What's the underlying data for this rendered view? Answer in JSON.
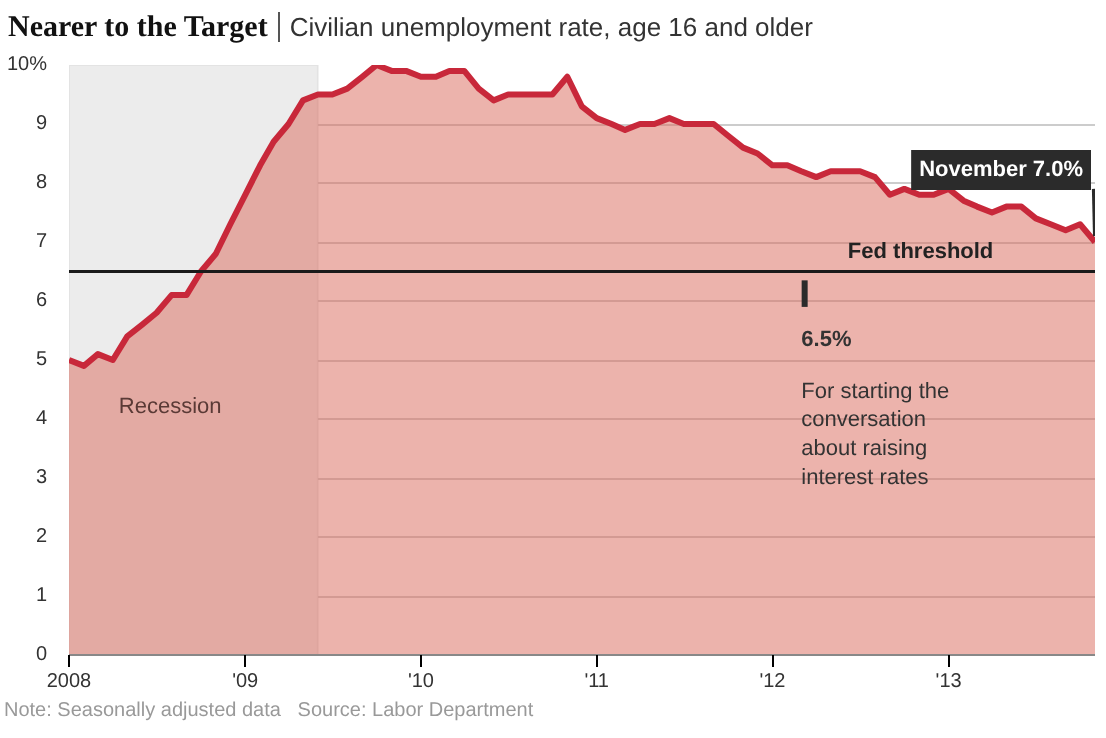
{
  "chart_data": {
    "type": "area",
    "title": "Nearer to the Target",
    "subtitle": "Civilian unemployment rate, age 16 and older",
    "x": [
      "2008-01",
      "2008-02",
      "2008-03",
      "2008-04",
      "2008-05",
      "2008-06",
      "2008-07",
      "2008-08",
      "2008-09",
      "2008-10",
      "2008-11",
      "2008-12",
      "2009-01",
      "2009-02",
      "2009-03",
      "2009-04",
      "2009-05",
      "2009-06",
      "2009-07",
      "2009-08",
      "2009-09",
      "2009-10",
      "2009-11",
      "2009-12",
      "2010-01",
      "2010-02",
      "2010-03",
      "2010-04",
      "2010-05",
      "2010-06",
      "2010-07",
      "2010-08",
      "2010-09",
      "2010-10",
      "2010-11",
      "2010-12",
      "2011-01",
      "2011-02",
      "2011-03",
      "2011-04",
      "2011-05",
      "2011-06",
      "2011-07",
      "2011-08",
      "2011-09",
      "2011-10",
      "2011-11",
      "2011-12",
      "2012-01",
      "2012-02",
      "2012-03",
      "2012-04",
      "2012-05",
      "2012-06",
      "2012-07",
      "2012-08",
      "2012-09",
      "2012-10",
      "2012-11",
      "2012-12",
      "2013-01",
      "2013-02",
      "2013-03",
      "2013-04",
      "2013-05",
      "2013-06",
      "2013-07",
      "2013-08",
      "2013-09",
      "2013-10",
      "2013-11"
    ],
    "series": [
      {
        "color": "#c8283a",
        "values": [
          5.0,
          4.9,
          5.1,
          5.0,
          5.4,
          5.6,
          5.8,
          6.1,
          6.1,
          6.5,
          6.8,
          7.3,
          7.8,
          8.3,
          8.7,
          9.0,
          9.4,
          9.5,
          9.5,
          9.6,
          9.8,
          10.0,
          9.9,
          9.9,
          9.8,
          9.8,
          9.9,
          9.9,
          9.6,
          9.4,
          9.5,
          9.5,
          9.5,
          9.5,
          9.8,
          9.3,
          9.1,
          9.0,
          8.9,
          9.0,
          9.0,
          9.1,
          9.0,
          9.0,
          9.0,
          8.8,
          8.6,
          8.5,
          8.3,
          8.3,
          8.2,
          8.1,
          8.2,
          8.2,
          8.2,
          8.1,
          7.8,
          7.9,
          7.8,
          7.8,
          7.9,
          7.7,
          7.6,
          7.5,
          7.6,
          7.6,
          7.4,
          7.3,
          7.2,
          7.3,
          7.0
        ]
      }
    ],
    "xlim": [
      "2008-01",
      "2013-11"
    ],
    "xticks": [
      {
        "value": "2008-01",
        "label": "2008"
      },
      {
        "value": "2009-01",
        "label": "'09"
      },
      {
        "value": "2010-01",
        "label": "'10"
      },
      {
        "value": "2011-01",
        "label": "'11"
      },
      {
        "value": "2012-01",
        "label": "'12"
      },
      {
        "value": "2013-01",
        "label": "'13"
      }
    ],
    "ylim": [
      0,
      10
    ],
    "yticks": [
      0,
      1,
      2,
      3,
      4,
      5,
      6,
      7,
      8,
      9,
      {
        "value": 10,
        "label": "10%"
      }
    ],
    "grid": "y",
    "marker": "none",
    "line_style": "solid",
    "ref_lines": [
      {
        "axis": "y",
        "value": 6.5,
        "label": "Fed threshold",
        "color": "#1a1a1a"
      }
    ],
    "bands": [
      {
        "axis": "x",
        "from": "2008-01",
        "to": "2009-06",
        "label": "Recession",
        "color": "#ececec"
      }
    ],
    "annotations": [
      {
        "text": "November 7.0%",
        "x": "2013-11",
        "y": 7.0
      },
      {
        "text": "6.5%",
        "x": "2012-03",
        "y": 6.5
      },
      "For starting the conversation about raising interest rates",
      "Note: Seasonally adjusted data",
      "Source: Labor Department"
    ]
  }
}
